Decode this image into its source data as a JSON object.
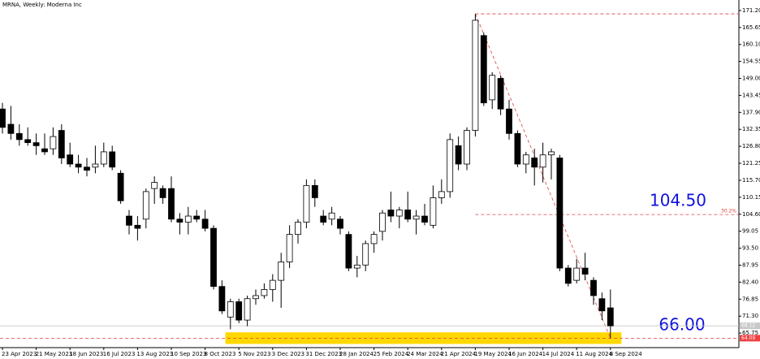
{
  "chart_data": {
    "type": "candlestick",
    "title": "MRNA, Weekly:  Moderna Inc",
    "categories": [
      "23 Apr 2023",
      null,
      null,
      null,
      "21 May 2023",
      null,
      null,
      null,
      "18 Jun 2023",
      null,
      null,
      null,
      "16 Jul 2023",
      null,
      null,
      null,
      "13 Aug 2023",
      null,
      null,
      null,
      "10 Sep 2023",
      null,
      null,
      null,
      "8 Oct 2023",
      null,
      null,
      null,
      "5 Nov 2023",
      null,
      null,
      null,
      "3 Dec 2023",
      null,
      null,
      null,
      "31 Dec 2023",
      null,
      null,
      null,
      "28 Jan 2024",
      null,
      null,
      null,
      "25 Feb 2024",
      null,
      null,
      null,
      "24 Mar 2024",
      null,
      null,
      null,
      "21 Apr 2024",
      null,
      null,
      null,
      "19 May 2024",
      null,
      null,
      null,
      "16 Jun 2024",
      null,
      null,
      null,
      "14 Jul 2024",
      null,
      null,
      null,
      "11 Aug 2024",
      null,
      null,
      null,
      "8 Sep 2024"
    ],
    "open": [
      139,
      134,
      131,
      129,
      128,
      126,
      126,
      132,
      124,
      121,
      120,
      120,
      121,
      125,
      118,
      104,
      101,
      103,
      113,
      113,
      113,
      103,
      102,
      104,
      103,
      100,
      81,
      71,
      76,
      70,
      77,
      78,
      80,
      83,
      89,
      98,
      102,
      114,
      104,
      103,
      103,
      98,
      87,
      88,
      95,
      99,
      106,
      104,
      106,
      103,
      104,
      101,
      110,
      112,
      127,
      121,
      132,
      163,
      142,
      149,
      139,
      131,
      121,
      123,
      120,
      124,
      123,
      87,
      83,
      87,
      83,
      77,
      74
    ],
    "high": [
      141,
      140,
      134,
      133,
      131,
      131,
      133,
      134,
      128,
      124,
      123,
      127,
      128,
      127,
      119,
      106,
      104,
      113,
      117,
      114,
      117,
      105,
      107,
      106,
      106,
      101,
      83,
      77,
      77,
      78,
      80,
      82,
      85,
      92,
      101,
      103,
      116,
      116,
      106,
      107,
      104,
      99,
      91,
      96,
      99,
      106,
      112,
      107,
      112,
      106,
      108,
      114,
      116,
      131,
      130,
      133,
      170.1,
      164,
      151,
      150,
      142,
      132,
      125,
      126,
      128,
      126,
      124,
      88,
      90,
      92,
      84,
      79,
      80
    ],
    "low": [
      131,
      129,
      127,
      127,
      124,
      124,
      124,
      121,
      120,
      118,
      117,
      118,
      120,
      119,
      108,
      98,
      96,
      100,
      108,
      108,
      102,
      98,
      98,
      102,
      99,
      80,
      72,
      67,
      69,
      68,
      75,
      77,
      76,
      74,
      87,
      95,
      100,
      107,
      101,
      101,
      98,
      86,
      84,
      86,
      92,
      96,
      102,
      100,
      102,
      98,
      101,
      100,
      108,
      110,
      119,
      119,
      130,
      140,
      139,
      137,
      129,
      120,
      118,
      114,
      115,
      116,
      86,
      81,
      82,
      83,
      75,
      70,
      64.09
    ],
    "close": [
      133,
      131,
      129,
      128,
      127,
      125,
      130,
      123,
      121,
      120,
      119,
      121,
      125,
      120,
      109,
      101,
      100,
      112,
      115,
      110,
      103,
      102,
      104,
      103,
      100,
      81,
      73,
      76,
      70,
      77,
      78,
      80,
      83,
      89,
      98,
      102,
      114,
      110,
      102,
      105,
      100,
      87,
      88,
      95,
      98,
      105,
      104,
      106,
      103,
      104,
      102,
      110,
      112,
      129,
      121,
      132,
      168,
      141,
      150,
      139,
      131,
      121,
      124,
      120,
      124,
      125,
      87,
      82,
      87,
      85,
      78,
      73,
      68.12
    ],
    "ylim": [
      61,
      173.3
    ],
    "yticks": [
      {
        "value": 171.2,
        "label": "171.20"
      },
      165.65,
      {
        "value": 160.1,
        "label": "160.10"
      },
      154.55,
      {
        "value": 149,
        "label": "149.00"
      },
      143.45,
      {
        "value": 137.9,
        "label": "137.90"
      },
      132.35,
      {
        "value": 126.8,
        "label": "126.80"
      },
      121.25,
      {
        "value": 115.7,
        "label": "115.70"
      },
      110.15,
      {
        "value": 104.6,
        "label": "104.60"
      },
      99.05,
      {
        "value": 93.5,
        "label": "93.50"
      },
      87.95,
      {
        "value": 82.4,
        "label": "82.40"
      },
      76.85,
      {
        "value": 71.3,
        "label": "71.30"
      },
      65.75
    ],
    "fib": {
      "value": 104.5,
      "label": "104.50",
      "ratio_label": "30.2%"
    },
    "zone": {
      "from": 62.2,
      "to": 66,
      "label": "66.00"
    },
    "last_price": 68.12,
    "low_price": 64.09
  }
}
